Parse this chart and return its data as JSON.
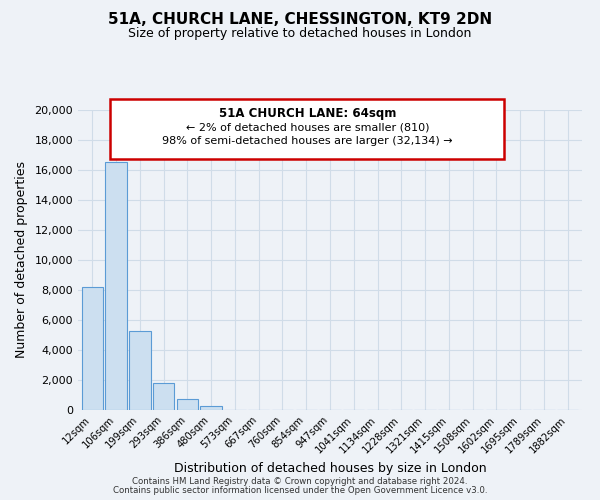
{
  "title": "51A, CHURCH LANE, CHESSINGTON, KT9 2DN",
  "subtitle": "Size of property relative to detached houses in London",
  "xlabel": "Distribution of detached houses by size in London",
  "ylabel": "Number of detached properties",
  "bar_color": "#ccdff0",
  "bar_edge_color": "#5b9bd5",
  "categories": [
    "12sqm",
    "106sqm",
    "199sqm",
    "293sqm",
    "386sqm",
    "480sqm",
    "573sqm",
    "667sqm",
    "760sqm",
    "854sqm",
    "947sqm",
    "1041sqm",
    "1134sqm",
    "1228sqm",
    "1321sqm",
    "1415sqm",
    "1508sqm",
    "1602sqm",
    "1695sqm",
    "1789sqm",
    "1882sqm"
  ],
  "values": [
    8200,
    16500,
    5300,
    1800,
    750,
    280,
    0,
    0,
    0,
    0,
    0,
    0,
    0,
    0,
    0,
    0,
    0,
    0,
    0,
    0,
    0
  ],
  "ylim": [
    0,
    20000
  ],
  "yticks": [
    0,
    2000,
    4000,
    6000,
    8000,
    10000,
    12000,
    14000,
    16000,
    18000,
    20000
  ],
  "annotation_title": "51A CHURCH LANE: 64sqm",
  "annotation_line1": "← 2% of detached houses are smaller (810)",
  "annotation_line2": "98% of semi-detached houses are larger (32,134) →",
  "annotation_box_color": "#ffffff",
  "annotation_box_edge": "#cc0000",
  "footnote1": "Contains HM Land Registry data © Crown copyright and database right 2024.",
  "footnote2": "Contains public sector information licensed under the Open Government Licence v3.0.",
  "grid_color": "#d0dce8",
  "background_color": "#eef2f7"
}
